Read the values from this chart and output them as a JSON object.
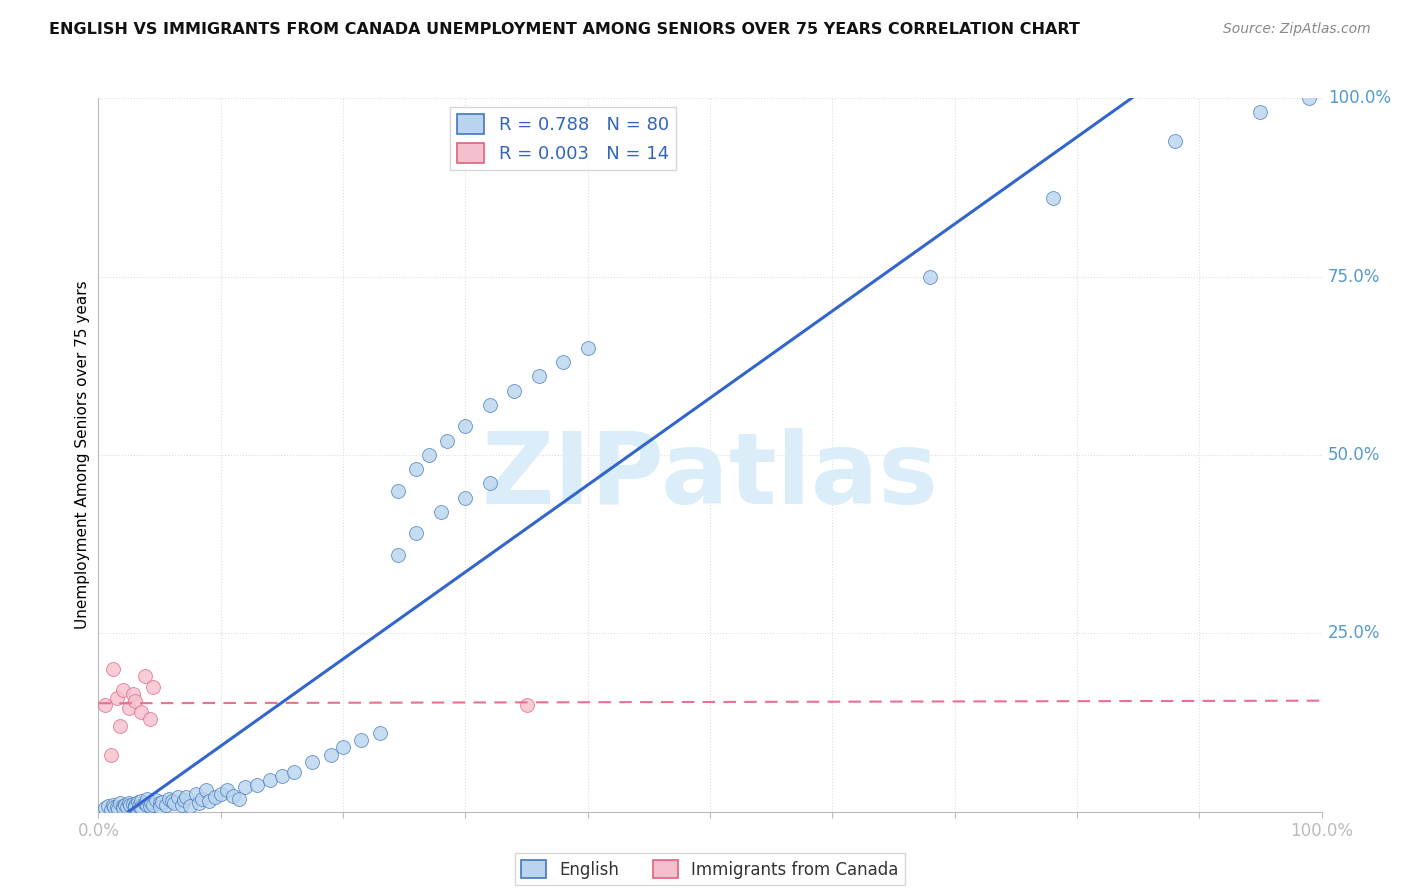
{
  "title": "ENGLISH VS IMMIGRANTS FROM CANADA UNEMPLOYMENT AMONG SENIORS OVER 75 YEARS CORRELATION CHART",
  "source": "Source: ZipAtlas.com",
  "ylabel": "Unemployment Among Seniors over 75 years",
  "R_english": 0.788,
  "N_english": 80,
  "R_immigrants": 0.003,
  "N_immigrants": 14,
  "english_fill": "#b8d4ee",
  "english_edge": "#4477bb",
  "immigrants_fill": "#f5c0ce",
  "immigrants_edge": "#e06080",
  "english_line_color": "#3366cc",
  "immigrants_line_color": "#e87090",
  "watermark_text": "ZIPatlas",
  "watermark_color": "#daedf8",
  "legend_label_english": "English",
  "legend_label_immigrants": "Immigrants from Canada",
  "axis_label_color": "#5599cc",
  "title_color": "#111111",
  "source_color": "#888888",
  "grid_color": "#dddddd",
  "ytick_positions": [
    0.25,
    0.5,
    0.75,
    1.0
  ],
  "ytick_labels": [
    "25.0%",
    "50.0%",
    "75.0%",
    "100.0%"
  ],
  "english_x": [
    0.005,
    0.008,
    0.01,
    0.012,
    0.013,
    0.015,
    0.016,
    0.018,
    0.02,
    0.02,
    0.022,
    0.023,
    0.025,
    0.026,
    0.028,
    0.03,
    0.03,
    0.032,
    0.033,
    0.035,
    0.035,
    0.038,
    0.04,
    0.04,
    0.042,
    0.043,
    0.045,
    0.047,
    0.05,
    0.05,
    0.052,
    0.055,
    0.058,
    0.06,
    0.062,
    0.065,
    0.068,
    0.07,
    0.072,
    0.075,
    0.08,
    0.082,
    0.085,
    0.088,
    0.09,
    0.095,
    0.1,
    0.105,
    0.11,
    0.115,
    0.12,
    0.13,
    0.14,
    0.15,
    0.16,
    0.175,
    0.19,
    0.2,
    0.215,
    0.23,
    0.245,
    0.26,
    0.27,
    0.285,
    0.3,
    0.32,
    0.34,
    0.36,
    0.38,
    0.4,
    0.245,
    0.26,
    0.28,
    0.3,
    0.32,
    0.68,
    0.78,
    0.88,
    0.95,
    0.99
  ],
  "english_y": [
    0.005,
    0.008,
    0.003,
    0.01,
    0.006,
    0.007,
    0.004,
    0.012,
    0.008,
    0.005,
    0.01,
    0.007,
    0.012,
    0.009,
    0.011,
    0.01,
    0.006,
    0.013,
    0.008,
    0.015,
    0.007,
    0.012,
    0.01,
    0.018,
    0.008,
    0.014,
    0.01,
    0.016,
    0.012,
    0.006,
    0.014,
    0.01,
    0.018,
    0.015,
    0.012,
    0.02,
    0.01,
    0.016,
    0.02,
    0.008,
    0.025,
    0.012,
    0.018,
    0.03,
    0.015,
    0.02,
    0.025,
    0.03,
    0.022,
    0.018,
    0.035,
    0.038,
    0.045,
    0.05,
    0.055,
    0.07,
    0.08,
    0.09,
    0.1,
    0.11,
    0.45,
    0.48,
    0.5,
    0.52,
    0.54,
    0.57,
    0.59,
    0.61,
    0.63,
    0.65,
    0.36,
    0.39,
    0.42,
    0.44,
    0.46,
    0.75,
    0.86,
    0.94,
    0.98,
    1.0
  ],
  "immigrants_x": [
    0.005,
    0.01,
    0.012,
    0.015,
    0.018,
    0.02,
    0.025,
    0.028,
    0.03,
    0.035,
    0.038,
    0.042,
    0.045,
    0.35
  ],
  "immigrants_y": [
    0.15,
    0.08,
    0.2,
    0.16,
    0.12,
    0.17,
    0.145,
    0.165,
    0.155,
    0.14,
    0.19,
    0.13,
    0.175,
    0.15
  ]
}
